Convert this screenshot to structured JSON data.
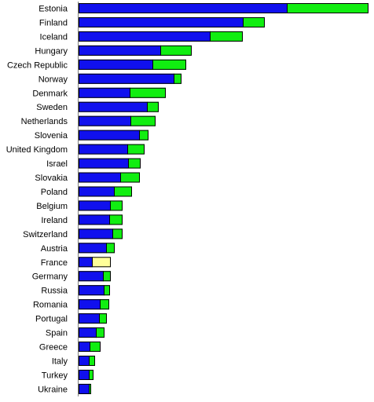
{
  "chart_data": {
    "type": "bar",
    "orientation": "horizontal",
    "stacked": true,
    "title": "",
    "xlabel": "",
    "ylabel": "",
    "xlim": [
      0,
      370
    ],
    "grid": false,
    "legend": "none",
    "colors": {
      "primary": "#1010ee",
      "secondary": "#11ee11",
      "secondary_alt": "#ffff99",
      "outline": "#000000",
      "axis": "#808080"
    },
    "categories": [
      "Estonia",
      "Finland",
      "Iceland",
      "Hungary",
      "Czech Republic",
      "Norway",
      "Denmark",
      "Sweden",
      "Netherlands",
      "Slovenia",
      "United Kingdom",
      "Israel",
      "Slovakia",
      "Poland",
      "Belgium",
      "Ireland",
      "Switzerland",
      "Austria",
      "France",
      "Germany",
      "Russia",
      "Romania",
      "Portugal",
      "Spain",
      "Greece",
      "Italy",
      "Turkey",
      "Ukraine"
    ],
    "series": [
      {
        "values": [
          265,
          209,
          167,
          104,
          94,
          121,
          65,
          87,
          66,
          77,
          62,
          63,
          53,
          45,
          40,
          39,
          43,
          35,
          17,
          31,
          32,
          27,
          26,
          22,
          14,
          13,
          13,
          13
        ]
      },
      {
        "values": [
          104,
          28,
          42,
          40,
          43,
          10,
          46,
          15,
          32,
          12,
          22,
          16,
          25,
          23,
          16,
          17,
          13,
          11,
          24,
          10,
          8,
          12,
          10,
          11,
          14,
          8,
          6,
          3
        ],
        "highlight_index": 18
      }
    ]
  }
}
